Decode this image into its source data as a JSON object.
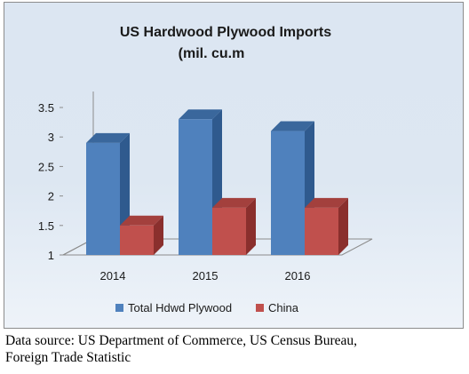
{
  "chart_data": {
    "type": "bar",
    "title_lines": [
      "US Hardwood Plywood Imports",
      "(mil. cu.m"
    ],
    "categories": [
      "2014",
      "2015",
      "2016"
    ],
    "series": [
      {
        "name": "Total Hdwd Plywood",
        "values": [
          2.9,
          3.3,
          3.1
        ]
      },
      {
        "name": "China",
        "values": [
          1.5,
          1.8,
          1.8
        ]
      }
    ],
    "yticks": [
      "1",
      "1.5",
      "2",
      "2.5",
      "3",
      "3.5"
    ],
    "ylim": [
      1,
      3.5
    ],
    "xlabel": "",
    "ylabel": "",
    "legend_position": "bottom",
    "grid": false,
    "colors": {
      "series1_front": "#4f81bd",
      "series1_side": "#2f5a8e",
      "series1_top": "#3a679c",
      "series2_front": "#c0504d",
      "series2_side": "#8a2f2d",
      "series2_top": "#a3403d"
    }
  },
  "caption": {
    "line1": "Data source: US Department of Commerce, US Census Bureau,",
    "line2": "Foreign Trade Statistic"
  }
}
